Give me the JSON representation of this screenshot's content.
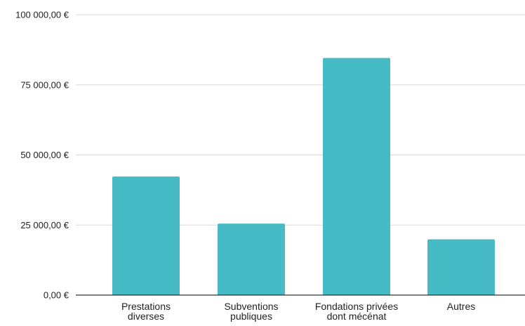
{
  "chart_data": {
    "type": "bar",
    "title": "",
    "xlabel": "",
    "ylabel": "",
    "categories": [
      [
        "Prestations",
        "diverses"
      ],
      [
        "Subventions",
        "publiques"
      ],
      [
        "Fondations privées",
        "dont mécénat"
      ],
      [
        "Autres"
      ]
    ],
    "values": [
      42300,
      25500,
      84600,
      19900
    ],
    "ylim": [
      0,
      100000
    ],
    "yticks": [
      0,
      25000,
      50000,
      75000,
      100000
    ],
    "ytick_labels": [
      "0,00 €",
      "25 000,00 €",
      "50 000,00 €",
      "75 000,00 €",
      "100 000,00 €"
    ],
    "grid": true,
    "legend": "none",
    "colors": {
      "bar": "#46bbc5",
      "grid": "#d9d9d9",
      "axis": "#333333",
      "text": "#222222"
    }
  }
}
